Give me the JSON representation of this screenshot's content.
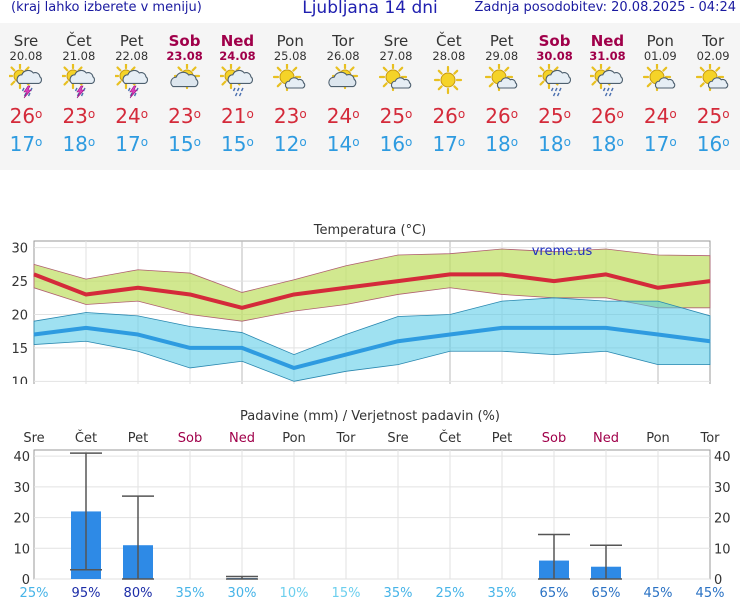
{
  "header": {
    "menu_hint": "(kraj lahko izberete v meniju)",
    "title": "Ljubljana 14 dni",
    "updated": "Zadnja posodobitev: 20.08.2025 - 04:24"
  },
  "colors": {
    "max": "#d42a3a",
    "min": "#2e9be0",
    "weekend": "#a0004a",
    "bar": "#2e8ae6"
  },
  "days": [
    {
      "name": "Sre",
      "date": "20.08",
      "weekend": false,
      "icon": "sun-cloud-rain-storm-icon",
      "tmax": "26",
      "tmin": "17"
    },
    {
      "name": "Čet",
      "date": "21.08",
      "weekend": false,
      "icon": "sun-cloud-rain-storm-icon",
      "tmax": "23",
      "tmin": "18"
    },
    {
      "name": "Pet",
      "date": "22.08",
      "weekend": false,
      "icon": "sun-cloud-rain-storm-icon",
      "tmax": "24",
      "tmin": "17"
    },
    {
      "name": "Sob",
      "date": "23.08",
      "weekend": true,
      "icon": "sun-cloud-icon",
      "tmax": "23",
      "tmin": "15"
    },
    {
      "name": "Ned",
      "date": "24.08",
      "weekend": true,
      "icon": "sun-cloud-rain-icon",
      "tmax": "21",
      "tmin": "15"
    },
    {
      "name": "Pon",
      "date": "25.08",
      "weekend": false,
      "icon": "sun-small-cloud-icon",
      "tmax": "23",
      "tmin": "12"
    },
    {
      "name": "Tor",
      "date": "26.08",
      "weekend": false,
      "icon": "sun-cloud-icon",
      "tmax": "24",
      "tmin": "14"
    },
    {
      "name": "Sre",
      "date": "27.08",
      "weekend": false,
      "icon": "sun-small-cloud-icon",
      "tmax": "25",
      "tmin": "16"
    },
    {
      "name": "Čet",
      "date": "28.08",
      "weekend": false,
      "icon": "sun-icon",
      "tmax": "26",
      "tmin": "17"
    },
    {
      "name": "Pet",
      "date": "29.08",
      "weekend": false,
      "icon": "sun-small-cloud-icon",
      "tmax": "26",
      "tmin": "18"
    },
    {
      "name": "Sob",
      "date": "30.08",
      "weekend": true,
      "icon": "sun-cloud-rain-icon",
      "tmax": "25",
      "tmin": "18"
    },
    {
      "name": "Ned",
      "date": "31.08",
      "weekend": true,
      "icon": "sun-cloud-rain-icon",
      "tmax": "26",
      "tmin": "18"
    },
    {
      "name": "Pon",
      "date": "01.09",
      "weekend": false,
      "icon": "sun-small-cloud-icon",
      "tmax": "24",
      "tmin": "17"
    },
    {
      "name": "Tor",
      "date": "02.09",
      "weekend": false,
      "icon": "sun-small-cloud-icon",
      "tmax": "25",
      "tmin": "16"
    }
  ],
  "chart_data": [
    {
      "type": "line",
      "title": "Temperatura (°C)",
      "watermark": "vreme.us",
      "ylim": [
        9,
        31
      ],
      "yticks": [
        10,
        15,
        20,
        25,
        30
      ],
      "series": [
        {
          "name": "max",
          "values": [
            26,
            23,
            24,
            23,
            21,
            23,
            24,
            25,
            26,
            26,
            25,
            26,
            24,
            25
          ]
        },
        {
          "name": "min",
          "values": [
            17,
            18,
            17,
            15,
            15,
            12,
            14,
            16,
            17,
            18,
            18,
            18,
            17,
            16
          ]
        }
      ],
      "max_range": {
        "low": [
          24,
          21.5,
          22,
          20,
          19,
          20.5,
          21.5,
          23,
          24,
          23,
          22.5,
          22.5,
          21,
          21
        ],
        "high": [
          27.5,
          25.3,
          26.7,
          26.2,
          23.3,
          25.2,
          27.3,
          28.9,
          29.1,
          29.8,
          29.4,
          29.8,
          28.9,
          28.8
        ]
      },
      "min_range": {
        "low": [
          15.5,
          16,
          14.5,
          12,
          13,
          10,
          11.5,
          12.5,
          14.5,
          14.5,
          14,
          14.5,
          12.5,
          12.5
        ],
        "high": [
          19,
          20.3,
          19.8,
          18.2,
          17.3,
          14,
          17,
          19.7,
          20,
          22,
          22.5,
          22,
          22,
          19.8
        ]
      }
    },
    {
      "type": "bar",
      "title": "Padavine (mm) / Verjetnost padavin (%)",
      "categories": [
        "Sre",
        "Čet",
        "Pet",
        "Sob",
        "Ned",
        "Pon",
        "Tor",
        "Sre",
        "Čet",
        "Pet",
        "Sob",
        "Ned",
        "Pon",
        "Tor"
      ],
      "weekend": [
        false,
        false,
        false,
        true,
        true,
        false,
        false,
        false,
        false,
        false,
        true,
        true,
        false,
        false
      ],
      "ylim": [
        0,
        42
      ],
      "yticks": [
        0,
        10,
        20,
        30,
        40
      ],
      "values": [
        0,
        22,
        11,
        0,
        0.3,
        0,
        0,
        0,
        0,
        0,
        6,
        4,
        0,
        0
      ],
      "err_low": [
        0,
        3,
        0,
        0,
        0,
        0,
        0,
        0,
        0,
        0,
        0,
        0,
        0,
        0
      ],
      "err_high": [
        0,
        41,
        27,
        0,
        0.8,
        0,
        0,
        0,
        0,
        0,
        14.5,
        11,
        0,
        0
      ],
      "probability": [
        "25%",
        "95%",
        "80%",
        "35%",
        "30%",
        "10%",
        "15%",
        "35%",
        "25%",
        "35%",
        "65%",
        "65%",
        "45%",
        "45%"
      ],
      "probability_level": [
        1,
        3,
        3,
        1,
        1,
        0,
        0,
        1,
        1,
        1,
        2,
        2,
        2,
        2
      ]
    }
  ]
}
